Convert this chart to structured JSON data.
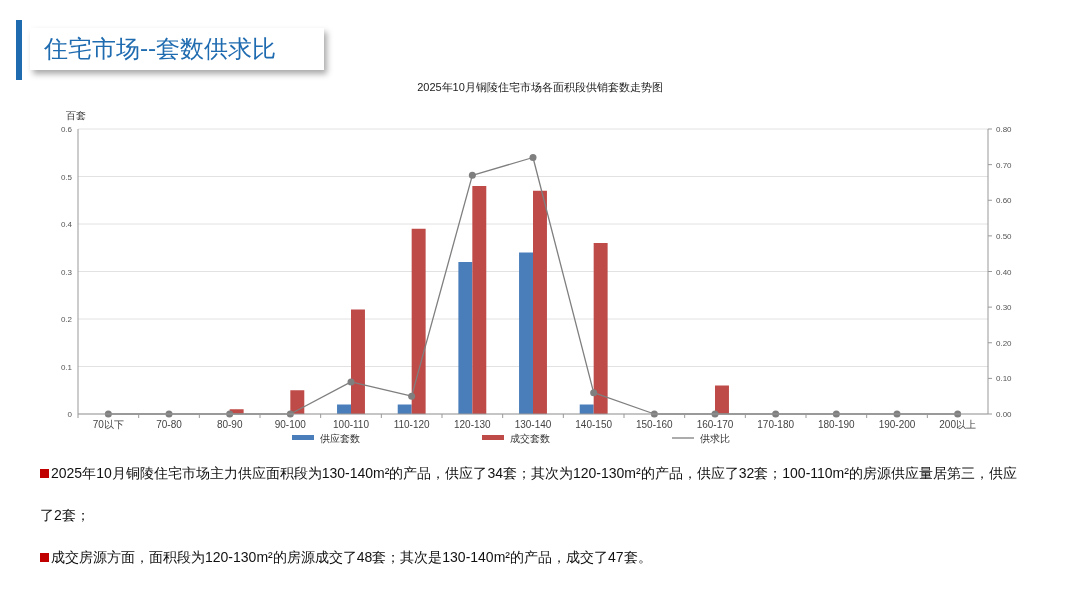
{
  "chart_data": {
    "type": "bar",
    "title": "住宅市场--套数供求比",
    "subtitle": "2025年10月铜陵住宅市场各面积段供销套数走势图",
    "ylabel": "百套",
    "categories": [
      "70以下",
      "70-80",
      "80-90",
      "90-100",
      "100-110",
      "110-120",
      "120-130",
      "130-140",
      "140-150",
      "150-160",
      "160-170",
      "170-180",
      "180-190",
      "190-200",
      "200以上"
    ],
    "series": [
      {
        "name": "供应套数",
        "color": "#4a7ebb",
        "values": [
          0,
          0,
          0,
          0,
          0.02,
          0.02,
          0.32,
          0.34,
          0.02,
          0,
          0,
          0,
          0,
          0,
          0
        ]
      },
      {
        "name": "成交套数",
        "color": "#be4b48",
        "values": [
          0,
          0,
          0.01,
          0.05,
          0.22,
          0.39,
          0.48,
          0.47,
          0.36,
          0,
          0.06,
          0,
          0,
          0,
          0
        ]
      },
      {
        "name": "供求比",
        "type": "line",
        "axis": "y2",
        "color": "#7f7f7f",
        "marker": "circle",
        "values": [
          0,
          0,
          0,
          0,
          0.09,
          0.05,
          0.67,
          0.72,
          0.06,
          0,
          0,
          0,
          0,
          0,
          0
        ]
      }
    ],
    "ylim": [
      0,
      0.6
    ],
    "yticks": [
      0,
      {
        "value": 0.1,
        "label": "0.1"
      },
      {
        "value": 0.2,
        "label": "0.2"
      },
      {
        "value": 0.3,
        "label": "0.3"
      },
      {
        "value": 0.4,
        "label": "0.4"
      },
      {
        "value": 0.5,
        "label": "0.5"
      },
      {
        "value": 0.6,
        "label": "0.6"
      }
    ],
    "y2lim": [
      0,
      0.8
    ],
    "y2ticks": [
      {
        "value": 0,
        "label": "0.00"
      },
      {
        "value": 0.1,
        "label": "0.10"
      },
      {
        "value": 0.2,
        "label": "0.20"
      },
      {
        "value": 0.3,
        "label": "0.30"
      },
      {
        "value": 0.4,
        "label": "0.40"
      },
      {
        "value": 0.5,
        "label": "0.50"
      },
      {
        "value": 0.6,
        "label": "0.60"
      },
      {
        "value": 0.7,
        "label": "0.70"
      },
      {
        "value": 0.8,
        "label": "0.80"
      }
    ],
    "grid": "y",
    "legend": "bottom",
    "annotations": [
      "2025年10月铜陵住宅市场主力供应面积段为130-140m²的产品，供应了34套；其次为120-130m²的产品，供应了32套；100-110m²的房源供应量居第三，供应了2套；",
      "成交房源方面，面积段为120-130m²的房源成交了48套；其次是130-140m²的产品，成交了47套。"
    ]
  }
}
